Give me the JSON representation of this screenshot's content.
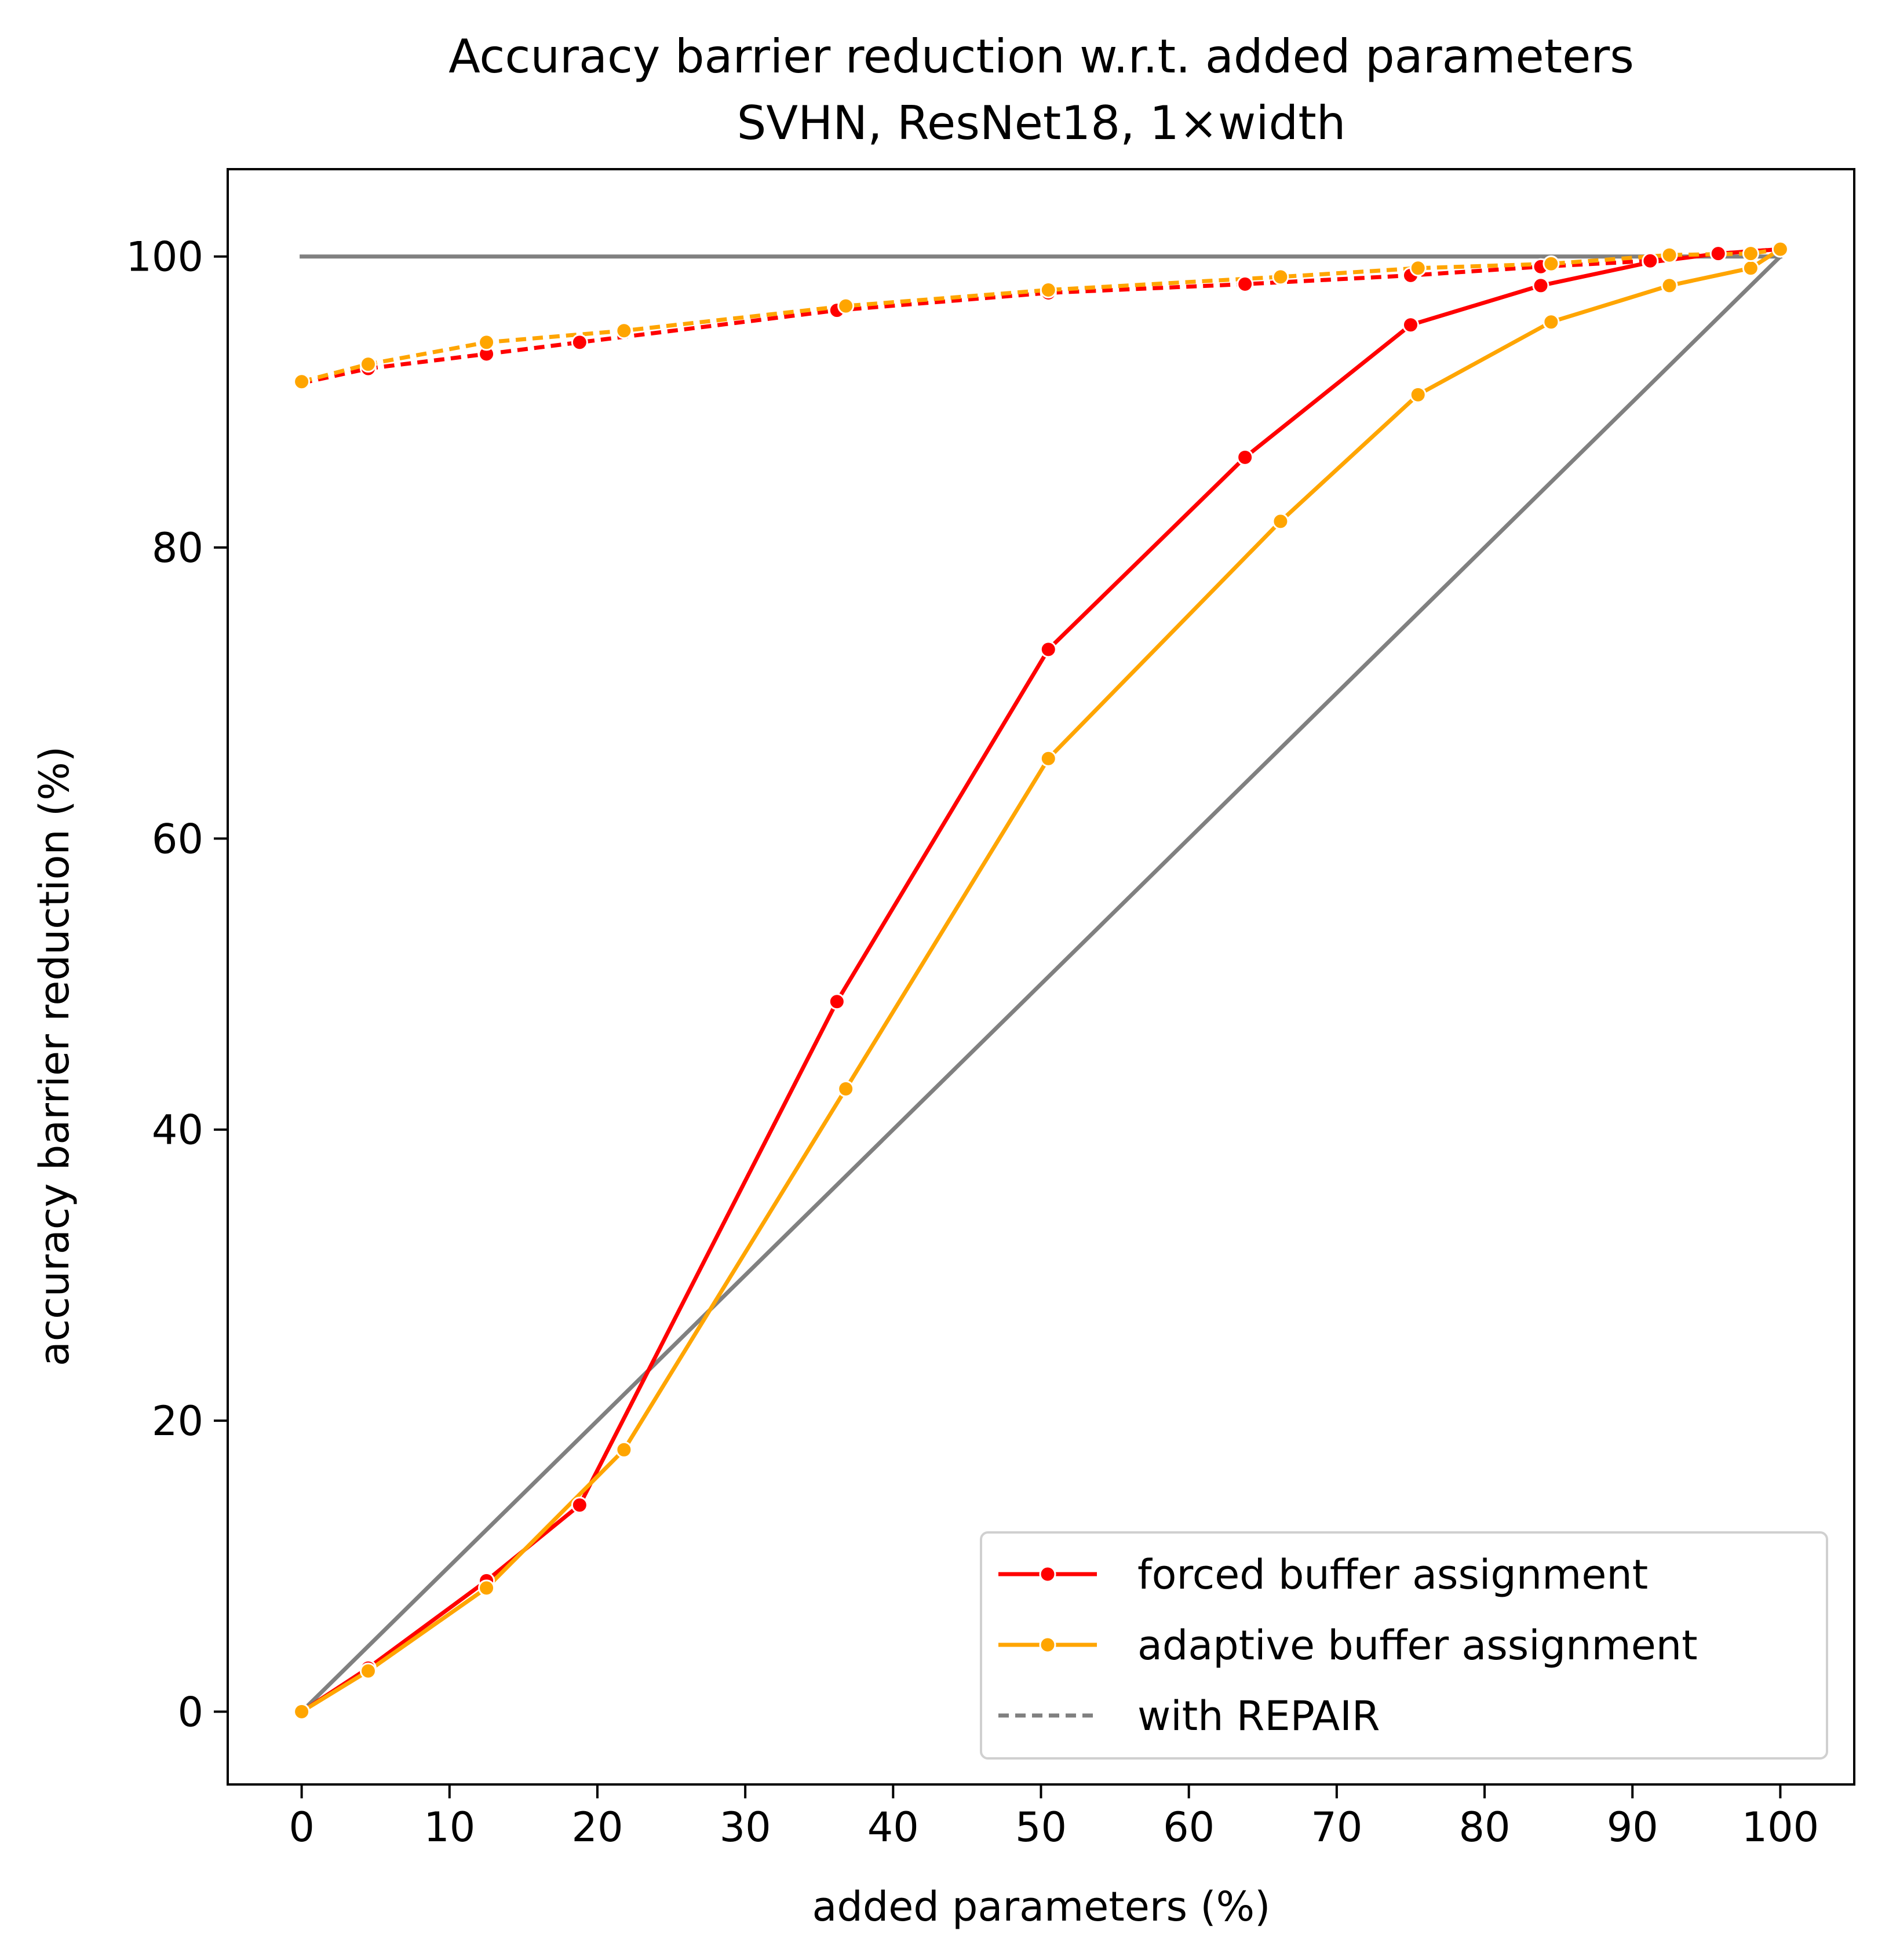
{
  "chart_data": {
    "type": "line",
    "title": "Accuracy barrier reduction w.r.t. added parameters",
    "subtitle": "SVHN, ResNet18, 1×width",
    "xlabel": "added parameters (%)",
    "ylabel": "accuracy barrier reduction (%)",
    "xlim": [
      -5,
      105
    ],
    "ylim": [
      -5,
      106
    ],
    "xticks": [
      0,
      10,
      20,
      30,
      40,
      50,
      60,
      70,
      80,
      90,
      100
    ],
    "yticks": [
      0,
      20,
      40,
      60,
      80,
      100
    ],
    "grid": false,
    "legend_position": "lower-right",
    "legend": [
      {
        "label": "forced buffer assignment",
        "color": "#ff0000",
        "style": "solid-marker"
      },
      {
        "label": "adaptive buffer assignment",
        "color": "#ffa500",
        "style": "solid-marker"
      },
      {
        "label": "with REPAIR",
        "color": "#808080",
        "style": "dotted"
      }
    ],
    "reference_lines": [
      {
        "color": "#808080",
        "x": [
          0,
          100
        ],
        "y": [
          100,
          100
        ]
      },
      {
        "color": "#808080",
        "x": [
          0,
          100
        ],
        "y": [
          0,
          100
        ]
      }
    ],
    "series": [
      {
        "label": "forced buffer assignment",
        "color": "#ff0000",
        "dashed": false,
        "x": [
          0,
          4.5,
          12.5,
          18.8,
          36.2,
          50.5,
          63.8,
          75.0,
          83.8,
          91.2,
          95.8,
          100
        ],
        "y": [
          0,
          3.0,
          9.0,
          14.2,
          48.8,
          73.0,
          86.2,
          95.3,
          98.0,
          99.6,
          100.2,
          100.5
        ]
      },
      {
        "label": "adaptive buffer assignment",
        "color": "#ffa500",
        "dashed": false,
        "x": [
          0,
          4.5,
          12.5,
          21.8,
          36.8,
          50.5,
          66.2,
          75.5,
          84.5,
          92.5,
          98.0,
          100
        ],
        "y": [
          0,
          2.8,
          8.5,
          18.0,
          42.8,
          65.5,
          81.8,
          90.5,
          95.5,
          98.0,
          99.2,
          100.5
        ]
      },
      {
        "label": "forced buffer assignment with REPAIR",
        "color": "#ff0000",
        "dashed": true,
        "x": [
          0,
          4.5,
          12.5,
          18.8,
          36.2,
          50.5,
          63.8,
          75.0,
          83.8,
          91.2,
          95.8,
          100
        ],
        "y": [
          91.3,
          92.3,
          93.3,
          94.1,
          96.3,
          97.5,
          98.1,
          98.7,
          99.3,
          99.7,
          100.2,
          100.5
        ]
      },
      {
        "label": "adaptive buffer assignment with REPAIR",
        "color": "#ffa500",
        "dashed": true,
        "x": [
          0,
          4.5,
          12.5,
          21.8,
          36.8,
          50.5,
          66.2,
          75.5,
          84.5,
          92.5,
          98.0,
          100
        ],
        "y": [
          91.4,
          92.6,
          94.1,
          94.9,
          96.6,
          97.7,
          98.6,
          99.2,
          99.5,
          100.1,
          100.2,
          100.5
        ]
      }
    ]
  }
}
